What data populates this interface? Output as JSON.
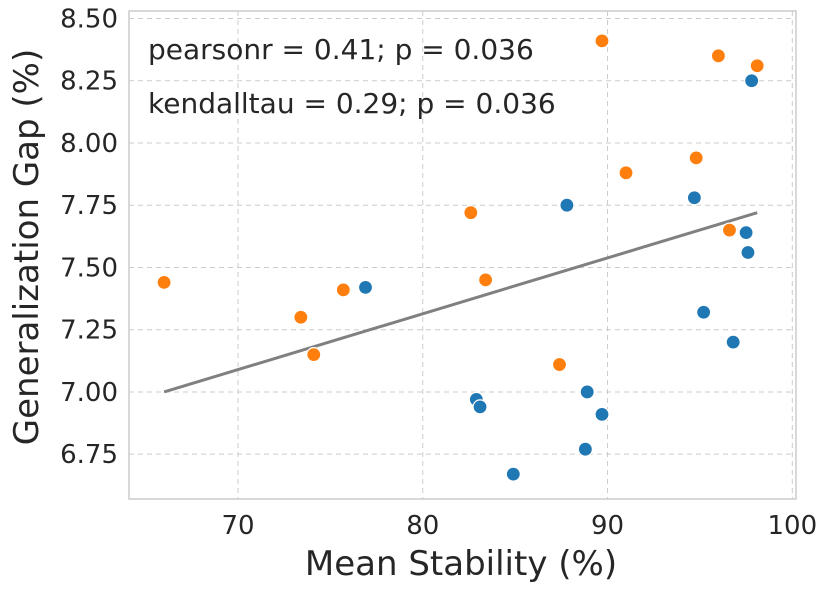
{
  "chart_data": {
    "type": "scatter",
    "title": "",
    "xlabel": "Mean Stability (%)",
    "ylabel": "Generalization Gap (%)",
    "xlim": [
      64.1,
      100.2
    ],
    "ylim": [
      6.57,
      8.53
    ],
    "x_ticks": [
      70,
      80,
      90,
      100
    ],
    "x_tick_labels": [
      "70",
      "80",
      "90",
      "100"
    ],
    "y_ticks": [
      6.75,
      7.0,
      7.25,
      7.5,
      7.75,
      8.0,
      8.25,
      8.5
    ],
    "y_tick_labels": [
      "6.75",
      "7.00",
      "7.25",
      "7.50",
      "7.75",
      "8.00",
      "8.25",
      "8.50"
    ],
    "grid": true,
    "annotations": [
      "pearsonr = 0.41; p = 0.036",
      "kendalltau = 0.29; p = 0.036"
    ],
    "series": [
      {
        "name": "blue",
        "color": "#1f77b4",
        "points": [
          [
            76.9,
            7.42
          ],
          [
            87.8,
            7.75
          ],
          [
            94.7,
            7.78
          ],
          [
            97.5,
            7.64
          ],
          [
            97.6,
            7.56
          ],
          [
            97.8,
            8.25
          ],
          [
            95.2,
            7.32
          ],
          [
            96.8,
            7.2
          ],
          [
            82.9,
            6.97
          ],
          [
            83.1,
            6.94
          ],
          [
            88.9,
            7.0
          ],
          [
            89.7,
            6.91
          ],
          [
            88.8,
            6.77
          ],
          [
            84.9,
            6.67
          ]
        ]
      },
      {
        "name": "orange",
        "color": "#ff7f0e",
        "points": [
          [
            66.0,
            7.44
          ],
          [
            73.4,
            7.3
          ],
          [
            74.1,
            7.15
          ],
          [
            75.7,
            7.41
          ],
          [
            82.6,
            7.72
          ],
          [
            83.4,
            7.45
          ],
          [
            87.4,
            7.11
          ],
          [
            89.7,
            8.41
          ],
          [
            91.0,
            7.88
          ],
          [
            94.8,
            7.94
          ],
          [
            96.6,
            7.65
          ],
          [
            96.0,
            8.35
          ],
          [
            98.1,
            8.31
          ]
        ]
      }
    ],
    "fit_line": {
      "color": "#808080",
      "x": [
        66.0,
        98.1
      ],
      "y": [
        7.0,
        7.72
      ]
    }
  }
}
